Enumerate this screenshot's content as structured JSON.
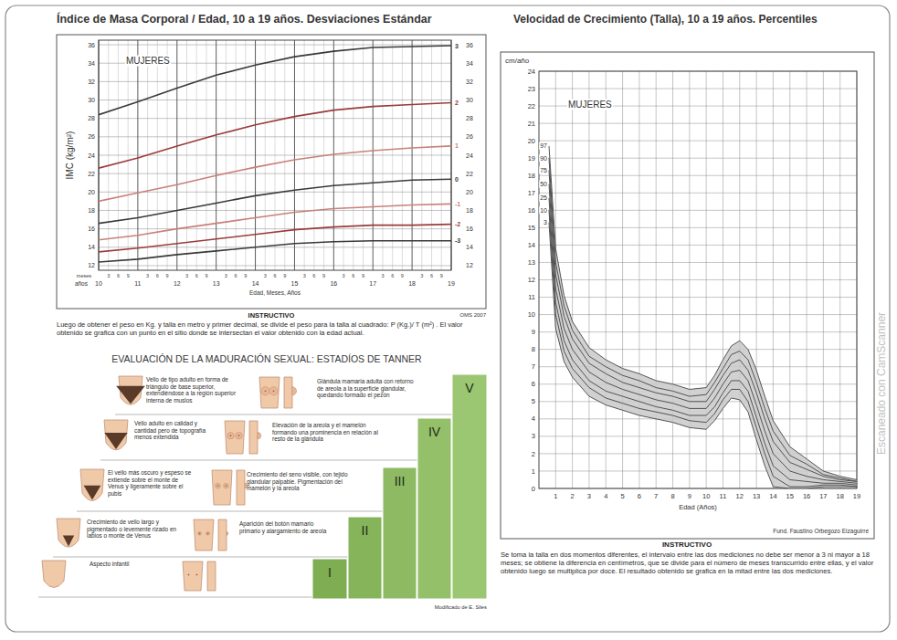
{
  "chart_data": [
    {
      "type": "line",
      "title": "Índice de Masa Corporal / Edad, 10 a 19 años. Desviaciones Estándar",
      "panel_label": "MUJERES",
      "y_label": "IMC (kg/m²)",
      "x_label": "Edad, Meses, Años",
      "x_unit_label": "años",
      "month_unit_label": "meses",
      "month_ticks": [
        3,
        6,
        9
      ],
      "source": "OMS 2007",
      "x": [
        10,
        11,
        12,
        13,
        14,
        15,
        16,
        17,
        18,
        19
      ],
      "xlim": [
        10,
        19
      ],
      "xticks": [
        10,
        11,
        12,
        13,
        14,
        15,
        16,
        17,
        18,
        19
      ],
      "ylim": [
        11.5,
        36.5
      ],
      "yticks": [
        12,
        14,
        16,
        18,
        20,
        22,
        24,
        26,
        28,
        30,
        32,
        34,
        36
      ],
      "y2lim": [
        11.5,
        36.5
      ],
      "y2ticks": [
        12,
        14,
        16,
        18,
        20,
        22,
        24,
        26,
        28,
        30,
        32,
        34,
        36
      ],
      "grid": true,
      "series": [
        {
          "name": "3",
          "color": "#3a3a3a",
          "values": [
            28.4,
            29.8,
            31.3,
            32.7,
            33.8,
            34.7,
            35.3,
            35.7,
            35.8,
            35.9
          ]
        },
        {
          "name": "2",
          "color": "#9c3b3b",
          "values": [
            22.6,
            23.7,
            25.0,
            26.2,
            27.3,
            28.2,
            28.9,
            29.3,
            29.5,
            29.7
          ]
        },
        {
          "name": "1",
          "color": "#c9807a",
          "values": [
            19.0,
            19.9,
            20.8,
            21.8,
            22.7,
            23.5,
            24.1,
            24.5,
            24.8,
            25.0
          ]
        },
        {
          "name": "0",
          "color": "#3a3a3a",
          "values": [
            16.6,
            17.2,
            18.0,
            18.8,
            19.6,
            20.2,
            20.7,
            21.0,
            21.3,
            21.4
          ]
        },
        {
          "name": "-1",
          "color": "#c9807a",
          "values": [
            14.8,
            15.3,
            16.0,
            16.6,
            17.2,
            17.8,
            18.2,
            18.4,
            18.6,
            18.7
          ]
        },
        {
          "name": "-2",
          "color": "#9c3b3b",
          "values": [
            13.5,
            13.9,
            14.4,
            14.9,
            15.4,
            15.9,
            16.2,
            16.4,
            16.4,
            16.5
          ]
        },
        {
          "name": "-3",
          "color": "#3a3a3a",
          "values": [
            12.4,
            12.7,
            13.2,
            13.6,
            14.0,
            14.4,
            14.6,
            14.7,
            14.7,
            14.7
          ]
        }
      ]
    },
    {
      "type": "line",
      "title": "Velocidad de Crecimiento (Talla), 10 a 19 años. Percentiles",
      "panel_label": "MUJERES",
      "y_label": "cm/año",
      "x_label": "Edad (Años)",
      "source": "Fund. Faustino Orbegozo Eizaguirre",
      "x": [
        0.6,
        1,
        1.5,
        2,
        3,
        4,
        5,
        6,
        7,
        8,
        9,
        10,
        10.5,
        11,
        11.5,
        12,
        12.5,
        13,
        13.5,
        14,
        15,
        16,
        17,
        18,
        19
      ],
      "xlim": [
        0,
        19
      ],
      "xticks": [
        1,
        2,
        3,
        4,
        5,
        6,
        7,
        8,
        9,
        10,
        11,
        12,
        13,
        14,
        15,
        16,
        17,
        18,
        19
      ],
      "ylim": [
        0,
        24
      ],
      "yticks": [
        0,
        1,
        2,
        3,
        4,
        5,
        6,
        7,
        8,
        9,
        10,
        11,
        12,
        13,
        14,
        15,
        16,
        17,
        18,
        19,
        20,
        21,
        22,
        23,
        24
      ],
      "grid": true,
      "series": [
        {
          "name": "97",
          "color": "#444444",
          "values": [
            19.7,
            13.8,
            11.1,
            9.6,
            8.1,
            7.4,
            6.9,
            6.6,
            6.2,
            6.0,
            5.7,
            5.8,
            6.5,
            7.4,
            8.2,
            8.5,
            8.0,
            6.8,
            5.3,
            3.9,
            2.4,
            1.7,
            1.0,
            0.7,
            0.5
          ]
        },
        {
          "name": "90",
          "color": "#444444",
          "values": [
            19.0,
            13.0,
            10.5,
            9.1,
            7.6,
            7.0,
            6.5,
            6.2,
            5.8,
            5.6,
            5.3,
            5.4,
            6.1,
            6.9,
            7.7,
            7.9,
            7.4,
            6.1,
            4.6,
            3.3,
            1.9,
            1.4,
            0.8,
            0.6,
            0.4
          ]
        },
        {
          "name": "75",
          "color": "#444444",
          "values": [
            18.3,
            12.3,
            9.9,
            8.6,
            7.2,
            6.6,
            6.1,
            5.8,
            5.5,
            5.3,
            5.0,
            5.0,
            5.7,
            6.5,
            7.2,
            7.4,
            6.8,
            5.5,
            4.0,
            2.7,
            1.5,
            1.1,
            0.7,
            0.5,
            0.4
          ]
        },
        {
          "name": "50",
          "color": "#444444",
          "values": [
            17.5,
            11.5,
            9.2,
            8.0,
            6.7,
            6.1,
            5.7,
            5.4,
            5.1,
            4.9,
            4.6,
            4.6,
            5.2,
            6.0,
            6.7,
            6.8,
            6.2,
            4.8,
            3.3,
            2.0,
            1.0,
            0.7,
            0.5,
            0.4,
            0.3
          ]
        },
        {
          "name": "25",
          "color": "#444444",
          "values": [
            16.7,
            10.7,
            8.5,
            7.4,
            6.2,
            5.6,
            5.3,
            5.0,
            4.7,
            4.5,
            4.2,
            4.2,
            4.7,
            5.5,
            6.2,
            6.2,
            5.6,
            4.1,
            2.6,
            1.3,
            0.5,
            0.4,
            0.3,
            0.3,
            0.2
          ]
        },
        {
          "name": "10",
          "color": "#444444",
          "values": [
            16.0,
            10.0,
            7.9,
            6.9,
            5.8,
            5.2,
            4.9,
            4.6,
            4.4,
            4.2,
            3.9,
            3.8,
            4.3,
            5.1,
            5.7,
            5.7,
            5.0,
            3.5,
            2.0,
            0.7,
            0.1,
            0.1,
            0.2,
            0.2,
            0.1
          ]
        },
        {
          "name": "3",
          "color": "#444444",
          "values": [
            15.3,
            9.2,
            7.3,
            6.4,
            5.3,
            4.8,
            4.5,
            4.2,
            4.0,
            3.8,
            3.5,
            3.4,
            3.9,
            4.6,
            5.2,
            5.1,
            4.4,
            2.8,
            1.3,
            0.1,
            0.0,
            0.0,
            0.1,
            0.1,
            0.1
          ]
        }
      ]
    }
  ],
  "left_instructions": {
    "title": "INSTRUCTIVO",
    "text": "Luego de obtener el peso en Kg. y talla en metro y primer decimal, se divide el peso para la talla al cuadrado: P (Kg.)/ T (m²) . El valor obtenido se grafica con un punto en el sitio donde se intersectan el valor obtenido con la edad actual."
  },
  "right_instructions": {
    "title": "INSTRUCTIVO",
    "text": "Se toma la talla en dos momentos diferentes, el intervalo entre las dos mediciones no debe ser menor a 3 ni mayor a 18 meses; se obtiene la diferencia en centímetros, que se divide para el número de meses transcurrido entre ellas, y el valor obtenido luego se multiplica por doce. El resultado obtenido se grafica en la mitad entre las dos mediciones."
  },
  "tanner": {
    "title": "EVALUACIÓN DE LA MADURACIÓN SEXUAL: ESTADÍOS DE TANNER",
    "credit": "Modificado de E. Siles",
    "stages": [
      {
        "label": "I",
        "pubic": "Aspecto infantil"
      },
      {
        "label": "II",
        "pubic": "Crecimiento de vello largo y pigmentado o levemente rizado en labios o monte de Venus",
        "breast": "Aparición del botón mamario primario y alargamiento de areola"
      },
      {
        "label": "III",
        "pubic": "El vello más oscuro y espeso se extiende sobre el monte de Venus y ligeramente sobre el pubis",
        "breast": "Crecimiento del seno visible, con tejido glandular palpable. Pigmentación del mamelón y la areola"
      },
      {
        "label": "IV",
        "pubic": "Vello adulto en calidad y cantidad pero de topografía menos extendida",
        "breast": "Elevación de la areola y el mamelón formando una prominencia en relación al resto de la glándula"
      },
      {
        "label": "V",
        "pubic": "Vello de tipo adulto en forma de triángulo de base superior, extendiéndose a la región superior interna de muslos",
        "breast": "Glándula mamaria adulta con retorno de areola a la superficie glandular, quedando formado el pezón"
      }
    ]
  },
  "watermark": "Escaneado con CamScanner"
}
